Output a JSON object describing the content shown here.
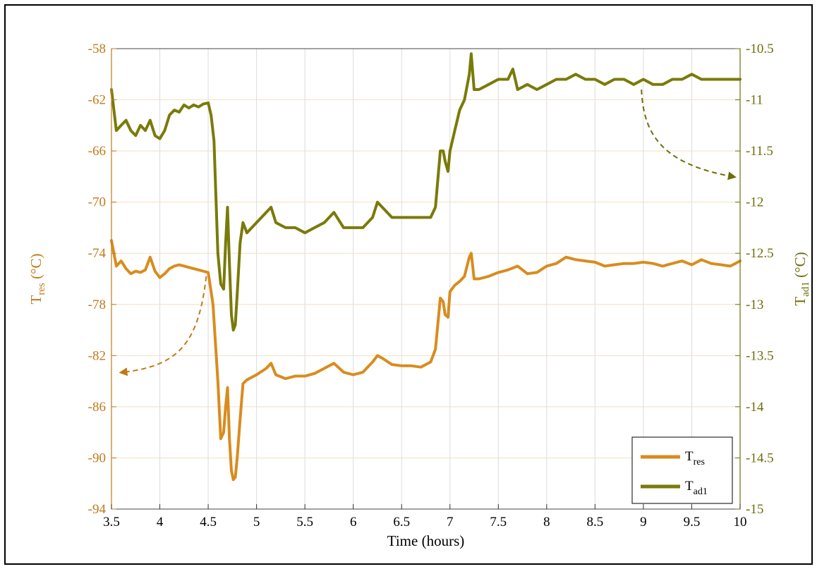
{
  "chart_data": {
    "type": "line",
    "xlabel": "Time (hours)",
    "ylabel_left": {
      "main": "T",
      "sub": "res",
      "unit": " (°C)"
    },
    "ylabel_right": {
      "main": "T",
      "sub": "ad1",
      "unit": " (°C)"
    },
    "xlim": [
      3.5,
      10
    ],
    "ylim_left": [
      -94,
      -58
    ],
    "ylim_right": [
      -15,
      -10.5
    ],
    "xticks": [
      "3.5",
      "4",
      "4.5",
      "5",
      "5.5",
      "6",
      "6.5",
      "7",
      "7.5",
      "8",
      "8.5",
      "9",
      "9.5",
      "10"
    ],
    "yticks_left": [
      "-58",
      "-62",
      "-66",
      "-70",
      "-74",
      "-78",
      "-82",
      "-86",
      "-90",
      "-94"
    ],
    "yticks_right": [
      "-10.5",
      "-11",
      "-11.5",
      "-12",
      "-12.5",
      "-13",
      "-13.5",
      "-14",
      "-14.5",
      "-15"
    ],
    "grid": true,
    "legend_position": "bottom-right",
    "colors": {
      "res": "#D98C1E",
      "ad1": "#7A7A0A",
      "left_axis": "#C07A1A",
      "right_axis": "#6E6E0A"
    },
    "series": [
      {
        "name": "T",
        "name_sub": "res",
        "axis": "left",
        "x": [
          3.5,
          3.55,
          3.6,
          3.65,
          3.7,
          3.75,
          3.8,
          3.85,
          3.9,
          3.95,
          4.0,
          4.05,
          4.1,
          4.15,
          4.2,
          4.3,
          4.4,
          4.5,
          4.55,
          4.6,
          4.63,
          4.66,
          4.68,
          4.7,
          4.72,
          4.74,
          4.76,
          4.78,
          4.8,
          4.83,
          4.86,
          4.9,
          5.0,
          5.1,
          5.15,
          5.2,
          5.3,
          5.4,
          5.5,
          5.6,
          5.7,
          5.8,
          5.9,
          6.0,
          6.1,
          6.2,
          6.25,
          6.3,
          6.4,
          6.5,
          6.6,
          6.7,
          6.8,
          6.85,
          6.9,
          6.93,
          6.95,
          6.98,
          7.0,
          7.05,
          7.1,
          7.15,
          7.2,
          7.22,
          7.25,
          7.3,
          7.4,
          7.5,
          7.6,
          7.7,
          7.8,
          7.9,
          8.0,
          8.1,
          8.2,
          8.3,
          8.4,
          8.5,
          8.6,
          8.7,
          8.8,
          8.9,
          9.0,
          9.1,
          9.2,
          9.3,
          9.4,
          9.5,
          9.6,
          9.7,
          9.8,
          9.9,
          10.0
        ],
        "y": [
          -73.0,
          -75.0,
          -74.6,
          -75.2,
          -75.6,
          -75.4,
          -75.5,
          -75.3,
          -74.3,
          -75.4,
          -75.9,
          -75.6,
          -75.2,
          -75.0,
          -74.9,
          -75.1,
          -75.3,
          -75.5,
          -78.0,
          -84.0,
          -88.5,
          -88.0,
          -86.0,
          -84.5,
          -88.5,
          -91.0,
          -91.7,
          -91.5,
          -90.0,
          -87.0,
          -84.2,
          -83.9,
          -83.5,
          -83.0,
          -82.6,
          -83.5,
          -83.8,
          -83.6,
          -83.6,
          -83.4,
          -83.0,
          -82.6,
          -83.3,
          -83.5,
          -83.3,
          -82.5,
          -82.0,
          -82.2,
          -82.7,
          -82.8,
          -82.8,
          -82.9,
          -82.5,
          -81.5,
          -77.5,
          -77.8,
          -78.8,
          -79.0,
          -77.0,
          -76.5,
          -76.2,
          -75.8,
          -74.3,
          -74.0,
          -76.0,
          -76.0,
          -75.8,
          -75.5,
          -75.3,
          -75.0,
          -75.6,
          -75.5,
          -75.0,
          -74.8,
          -74.3,
          -74.5,
          -74.6,
          -74.7,
          -75.0,
          -74.9,
          -74.8,
          -74.8,
          -74.7,
          -74.8,
          -75.0,
          -74.8,
          -74.6,
          -74.9,
          -74.5,
          -74.8,
          -74.9,
          -75.0,
          -74.6
        ]
      },
      {
        "name": "T",
        "name_sub": "ad1",
        "axis": "right",
        "x": [
          3.5,
          3.55,
          3.6,
          3.65,
          3.7,
          3.75,
          3.8,
          3.85,
          3.9,
          3.95,
          4.0,
          4.05,
          4.1,
          4.15,
          4.2,
          4.25,
          4.3,
          4.35,
          4.4,
          4.45,
          4.5,
          4.53,
          4.56,
          4.6,
          4.63,
          4.66,
          4.68,
          4.7,
          4.72,
          4.74,
          4.76,
          4.78,
          4.8,
          4.83,
          4.86,
          4.9,
          5.0,
          5.1,
          5.15,
          5.2,
          5.3,
          5.4,
          5.5,
          5.6,
          5.7,
          5.8,
          5.9,
          6.0,
          6.1,
          6.2,
          6.25,
          6.3,
          6.4,
          6.5,
          6.6,
          6.7,
          6.8,
          6.85,
          6.9,
          6.93,
          6.95,
          6.98,
          7.0,
          7.05,
          7.1,
          7.15,
          7.2,
          7.22,
          7.25,
          7.3,
          7.4,
          7.5,
          7.6,
          7.65,
          7.7,
          7.8,
          7.9,
          8.0,
          8.1,
          8.2,
          8.3,
          8.4,
          8.5,
          8.6,
          8.7,
          8.8,
          8.9,
          9.0,
          9.1,
          9.2,
          9.3,
          9.4,
          9.5,
          9.6,
          9.7,
          9.8,
          9.9,
          10.0
        ],
        "y": [
          -10.9,
          -11.3,
          -11.25,
          -11.2,
          -11.3,
          -11.35,
          -11.25,
          -11.3,
          -11.2,
          -11.35,
          -11.38,
          -11.3,
          -11.15,
          -11.1,
          -11.12,
          -11.05,
          -11.08,
          -11.05,
          -11.07,
          -11.04,
          -11.03,
          -11.15,
          -11.4,
          -12.5,
          -12.8,
          -12.85,
          -12.4,
          -12.05,
          -12.6,
          -13.1,
          -13.25,
          -13.2,
          -12.9,
          -12.4,
          -12.2,
          -12.3,
          -12.2,
          -12.1,
          -12.05,
          -12.2,
          -12.25,
          -12.25,
          -12.3,
          -12.25,
          -12.2,
          -12.1,
          -12.25,
          -12.25,
          -12.25,
          -12.15,
          -12.0,
          -12.05,
          -12.15,
          -12.15,
          -12.15,
          -12.15,
          -12.15,
          -12.05,
          -11.5,
          -11.5,
          -11.6,
          -11.7,
          -11.5,
          -11.3,
          -11.1,
          -11.0,
          -10.75,
          -10.55,
          -10.9,
          -10.9,
          -10.85,
          -10.8,
          -10.8,
          -10.7,
          -10.9,
          -10.85,
          -10.9,
          -10.85,
          -10.8,
          -10.8,
          -10.75,
          -10.8,
          -10.8,
          -10.85,
          -10.8,
          -10.8,
          -10.85,
          -10.8,
          -10.85,
          -10.85,
          -10.8,
          -10.8,
          -10.75,
          -10.8,
          -10.8,
          -10.8,
          -10.8,
          -10.8
        ]
      }
    ],
    "annotations": [
      {
        "kind": "arrow",
        "points_data": [
          [
            4.48,
            -75.8
          ],
          [
            4.4,
            -81.0
          ],
          [
            4.2,
            -82.8
          ],
          [
            3.62,
            -83.3
          ]
        ],
        "axis": "left",
        "color": "#C07A1A"
      },
      {
        "kind": "arrow",
        "points_data": [
          [
            8.98,
            -10.9
          ],
          [
            9.0,
            -11.3
          ],
          [
            9.15,
            -11.62
          ],
          [
            9.92,
            -11.75
          ]
        ],
        "axis": "right",
        "color": "#6E6E0A"
      }
    ]
  }
}
